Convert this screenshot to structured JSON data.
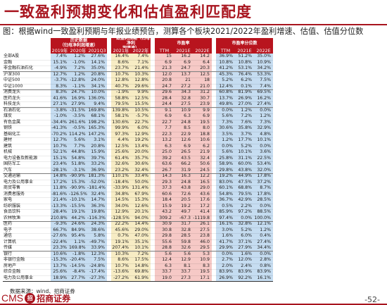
{
  "title": "一致盈利预期变化和估值盈利匹配度",
  "subtitle": "图：根据wind一致盈利预期与年报业绩预告，测算各个板块2021/2022年盈利增速、估值、估值分位数",
  "headers": {
    "group1": "历史数据\n（归母净利润增速）",
    "group2": "一致盈利预期（归母净利\n润增速）",
    "group3": "市盈率",
    "group4": "市盈率分位数",
    "cols": [
      "2019年",
      "2020年",
      "2021Q3",
      "2021年",
      "2022年",
      "TTM",
      "2021E",
      "2022E",
      "TTM",
      "2021E",
      "2022E"
    ]
  },
  "colors": {
    "title": "#a8141e",
    "header": "#b8141e",
    "blue": "#c6ddf1",
    "yellow": "#f7ecc4",
    "red": "#f6c9c6"
  },
  "rows": [
    {
      "name": "全部A股",
      "v": [
        "7.4%",
        "1.2%",
        "27.6%",
        "16.4%",
        "7.4%",
        "15",
        "16.2",
        "14.2",
        "36.9%",
        "51.2%",
        "35.0%"
      ]
    },
    {
      "name": "金融",
      "v": [
        "15.1%",
        "-1.0%",
        "14.1%",
        "8.6%",
        "7.1%",
        "6.9",
        "6.9",
        "6.4",
        "10.8%",
        "10.8%",
        "10.9%"
      ]
    },
    {
      "name": "非金融石油石化",
      "v": [
        "-4.9%",
        "7.2%",
        "35.0%",
        "23.7%",
        "21.4%",
        "21.3",
        "24.7",
        "20.3",
        "41.2%",
        "53.1%",
        "34.2%"
      ]
    },
    {
      "name": "沪深300",
      "v": [
        "12.7%",
        "1.2%",
        "20.8%",
        "10.7%",
        "10.3%",
        "12.0",
        "13.7",
        "12.5",
        "45.3%",
        "76.4%",
        "53.3%"
      ]
    },
    {
      "name": "中证500",
      "v": [
        "-3.7%",
        "-12.8%",
        "24.0%",
        "12.8%",
        "12.8%",
        "20.8",
        "21",
        "18",
        "5.2%",
        "6.2%",
        "7.5%"
      ]
    },
    {
      "name": "中证1000",
      "v": [
        "8.3%",
        "-1.1%",
        "34.1%",
        "40.7%",
        "29.6%",
        "24.7",
        "27.2",
        "21.0",
        "12.4%",
        "0.1%",
        "7.4%"
      ]
    },
    {
      "name": "消费龙头",
      "v": [
        "8.3%",
        "24.7%",
        "10.0%",
        "-1.9%",
        "9.9%",
        "29.6",
        "34.3",
        "31.2",
        "60.8%",
        "81.9%",
        "69.5%"
      ]
    },
    {
      "name": "医药龙头",
      "v": [
        "41.6%",
        "16.9%",
        "136.0%",
        "58.8%",
        "12.5%",
        "28.4",
        "32.8",
        "30.7",
        "13.7%",
        "26.9%",
        "16.2%"
      ]
    },
    {
      "name": "科技龙头",
      "v": [
        "27.1%",
        "27.9%",
        "9.4%",
        "79.5%",
        "15.5%",
        "24.4",
        "27.5",
        "23.9",
        "49.8%",
        "27.0%",
        "27.4%"
      ]
    },
    {
      "name": "石油石化",
      "v": [
        "-3.8%",
        "-31.5%",
        "169.8%",
        "139.8%",
        "10.5%",
        "9.1",
        "10.9",
        "9.9",
        "0.0%",
        "1.2%",
        "0.0%"
      ]
    },
    {
      "name": "煤炭",
      "v": [
        "-1.0%",
        "-3.5%",
        "68.1%",
        "58.1%",
        "-5.7%",
        "6.9",
        "6.3",
        "6.9",
        "5.6%",
        "7.2%",
        "1.2%"
      ]
    },
    {
      "name": "有色金属",
      "v": [
        "-34.4%",
        "261.6%",
        "198.2%",
        "130.6%",
        "22.7%",
        "22.7",
        "24.8",
        "19.5",
        "7.3%",
        "7.6%",
        "7.3%"
      ]
    },
    {
      "name": "钢铁",
      "v": [
        "-41.3%",
        "-0.5%",
        "165.3%",
        "99.9%",
        "6.0%",
        "7.7",
        "8.5",
        "8.0",
        "30.6%",
        "35.8%",
        "32.9%"
      ]
    },
    {
      "name": "基础化工",
      "v": [
        "-70.2%",
        "114.2%",
        "147.2%",
        "97.3%",
        "12.9%",
        "22.3",
        "22.9",
        "18.8",
        "3.5%",
        "3.7%",
        "4.8%"
      ]
    },
    {
      "name": "建材",
      "v": [
        "12.7%",
        "5.6%",
        "3.1%",
        "4.4%",
        "19.2%",
        "13.2",
        "12.6",
        "10.6",
        "1.2%",
        "17.7%",
        "10.1%"
      ]
    },
    {
      "name": "建筑",
      "v": [
        "10.7%",
        "7.7%",
        "20.8%",
        "12.5%",
        "13.4%",
        "6.3",
        "6.9",
        "6.2",
        "0.0%",
        "5.2%",
        "0.0%"
      ]
    },
    {
      "name": "机械",
      "v": [
        "52.1%",
        "44.8%",
        "15.9%",
        "25.6%",
        "20.0%",
        "25.0",
        "26.5",
        "21.9",
        "5.6%",
        "10.1%",
        "3.6%"
      ]
    },
    {
      "name": "电力设备及新能源",
      "v": [
        "15.1%",
        "54.8%",
        "39.7%",
        "61.4%",
        "35.7%",
        "39.2",
        "43.5",
        "32.4",
        "25.8%",
        "31.1%",
        "22.5%"
      ]
    },
    {
      "name": "国防军工",
      "v": [
        "23.4%",
        "51.8%",
        "33.2%",
        "32.6%",
        "30.6%",
        "63.6",
        "66.2",
        "50.6",
        "58.9%",
        "60.0%",
        "53.4%"
      ]
    },
    {
      "name": "汽车",
      "v": [
        "-28.1%",
        "-3.1%",
        "36.9%",
        "23.2%",
        "32.4%",
        "26.7",
        "31.9",
        "24.5",
        "29.8%",
        "43.8%",
        "32.0%"
      ]
    },
    {
      "name": "交通运输",
      "v": [
        "14.8%",
        "-90.9%",
        "181.3%",
        "110.1%",
        "33.4%",
        "14.3",
        "16.3",
        "12.2",
        "19.2%",
        "44.9%",
        "17.8%"
      ]
    },
    {
      "name": "电力及公用事业",
      "v": [
        "17.2%",
        "15.3%",
        "-52.0%",
        "-18.4%",
        "50.0%",
        "29.3",
        "24.8",
        "16.5",
        "83.0%",
        "47.5%",
        "37.2%"
      ]
    },
    {
      "name": "商贸零售",
      "v": [
        "11.8%",
        "-90.9%",
        "-181.4%",
        "-33.9%",
        "131.4%",
        "37.3",
        "43.8",
        "29.0",
        "60.1%",
        "68.8%",
        "8.7%"
      ]
    },
    {
      "name": "消费者服务",
      "v": [
        "-81.6%",
        "-126.5%",
        "32.4%",
        "34.8%",
        "67.9%",
        "60.6",
        "72.6",
        "43.6",
        "54.8%",
        "79.5%",
        "17.8%"
      ]
    },
    {
      "name": "家电",
      "v": [
        "21.4%",
        "-10.1%",
        "14.7%",
        "14.5%",
        "15.3%",
        "18.4",
        "20.5",
        "17.6",
        "36.7%",
        "42.9%",
        "28.5%"
      ]
    },
    {
      "name": "纺织服装",
      "v": [
        "-13.3%",
        "-15.5%",
        "36.3%",
        "34.0%",
        "12.6%",
        "15.9",
        "19.2",
        "17.2",
        "0.5%",
        "2.2%",
        "0.0%"
      ]
    },
    {
      "name": "食品饮料",
      "v": [
        "28.4%",
        "19.1%",
        "19.8%",
        "12.9%",
        "20.1%",
        "43.2",
        "49.7",
        "41.4",
        "85.9%",
        "97.2%",
        "88.5%"
      ]
    },
    {
      "name": "农林牧渔",
      "v": [
        "210.8%",
        "44.2%",
        "-116.3%",
        "-128.5%",
        "94.0%",
        "309.2",
        "-67.3",
        "-1119.8",
        "97.4%",
        "0.0%",
        "100.0%"
      ]
    },
    {
      "name": "医药",
      "v": [
        "-9.3%",
        "24.6%",
        "24.3%",
        "22.2%",
        "14.4%",
        "30.9",
        "31.7",
        "26.1",
        "16.1%",
        "32.8%",
        "12.1%"
      ]
    },
    {
      "name": "电子",
      "v": [
        "66.7%",
        "84.9%",
        "38.6%",
        "45.6%",
        "29.0%",
        "30.8",
        "32.8",
        "27.5",
        "3.0%",
        "5.2%",
        "1.2%"
      ]
    },
    {
      "name": "通信",
      "v": [
        "-27.6%",
        "95.4%",
        "5.8%",
        "0.7%",
        "47.0%",
        "29.8",
        "28.5",
        "23.8",
        "1.6%",
        "6.0%",
        "0.4%"
      ]
    },
    {
      "name": "计算机",
      "v": [
        "-22.4%",
        "1.1%",
        "-49.7%",
        "19.1%",
        "35.1%",
        "55.6",
        "59.8",
        "46.0",
        "41.7%",
        "37.1%",
        "27.4%"
      ]
    },
    {
      "name": "传媒",
      "v": [
        "23.3%",
        "169.8%",
        "33.9%",
        "207.4%",
        "10.1%",
        "28.8",
        "32.6",
        "29.5",
        "29.9%",
        "27.9%",
        "34.4%"
      ]
    },
    {
      "name": "银行",
      "v": [
        "10.6%",
        "-1.8%",
        "12.3%",
        "10.3%",
        "7.2%",
        "5.6",
        "5.6",
        "5.3",
        "0.0%",
        "1.6%",
        "0.0%"
      ]
    },
    {
      "name": "非银行金融",
      "v": [
        "-15.3%",
        "-20.4%",
        "7.5%",
        "8.6%",
        "17.5%",
        "12.4",
        "12.9",
        "10.9",
        "2.7%",
        "12.0%",
        "2.8%"
      ]
    },
    {
      "name": "房地产",
      "v": [
        "13.7%",
        "-14.5%",
        "-24.8%",
        "10.7%",
        "14.8%",
        "6.3",
        "8.1",
        "8.3",
        "2.0%",
        "2.4%",
        "0.8%"
      ]
    },
    {
      "name": "综合金融",
      "v": [
        "25.6%",
        "-8.4%",
        "-17.4%",
        "-13.6%",
        "69.8%",
        "33.7",
        "33.7",
        "19.5",
        "83.9%",
        "83.9%",
        "83.9%"
      ]
    },
    {
      "name": "电力及公用事业",
      "v": [
        "18.9%",
        "27.7%",
        "-27.3%",
        "-27.2%",
        "61.9%",
        "19.0",
        "27.3",
        "17.1",
        "26.9%",
        "92.2%",
        "16.1%"
      ]
    }
  ],
  "source": "数据来源：wind、招商证券",
  "logo": {
    "latin": "CMS",
    "mark": "招",
    "name": "招商证券"
  },
  "page": "-52-"
}
